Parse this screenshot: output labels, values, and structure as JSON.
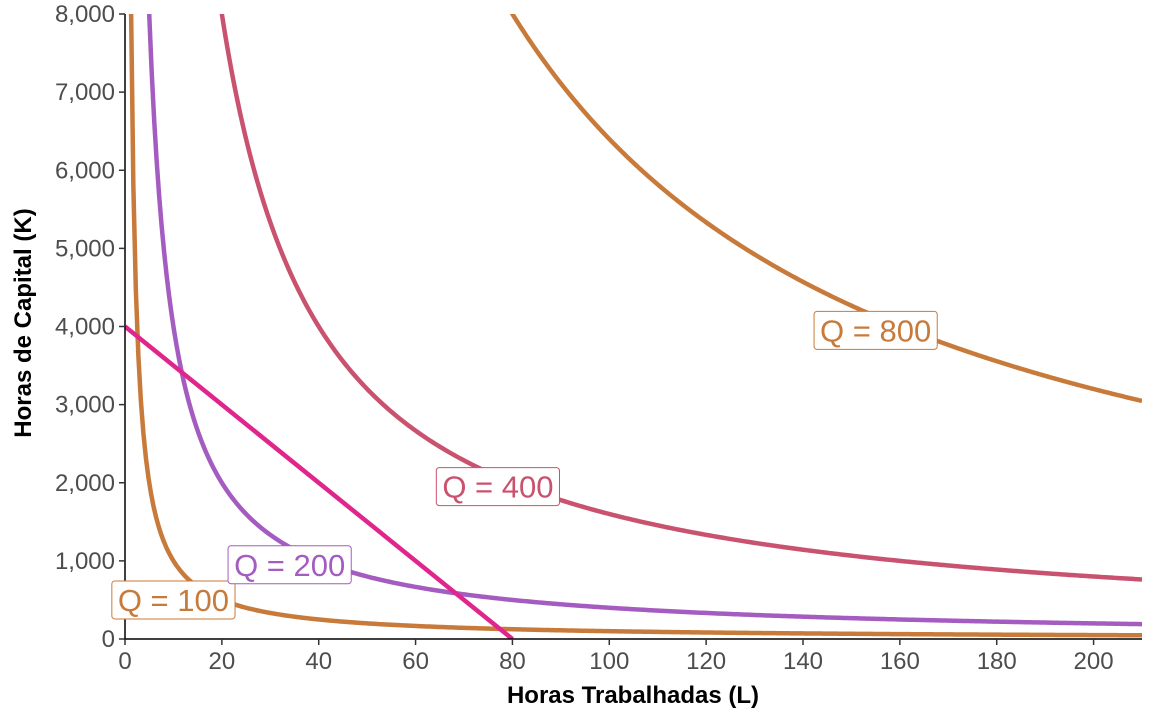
{
  "chart_data": {
    "type": "line",
    "xlabel": "Horas Trabalhadas (L)",
    "ylabel": "Horas de Capital (K)",
    "xlim": [
      0,
      210
    ],
    "ylim": [
      0,
      8000
    ],
    "x_ticks": [
      0,
      20,
      40,
      60,
      80,
      100,
      120,
      140,
      160,
      180,
      200
    ],
    "x_tick_labels": [
      "0",
      "20",
      "40",
      "60",
      "80",
      "100",
      "120",
      "140",
      "160",
      "180",
      "200"
    ],
    "y_ticks": [
      0,
      1000,
      2000,
      3000,
      4000,
      5000,
      6000,
      7000,
      8000
    ],
    "y_tick_labels": [
      "0",
      "1,000",
      "2,000",
      "3,000",
      "4,000",
      "5,000",
      "6,000",
      "7,000",
      "8,000"
    ],
    "grid": false,
    "isoquants": [
      {
        "label": "Q = 100",
        "color": "#C87A3A",
        "k_over_l": 10000,
        "l_min": 1.2,
        "label_at": [
          10,
          500
        ]
      },
      {
        "label": "Q = 200",
        "color": "#A55CC0",
        "k_over_l": 40000,
        "l_min": 5,
        "label_at": [
          34,
          950
        ]
      },
      {
        "label": "Q = 400",
        "color": "#C9526E",
        "k_over_l": 160000,
        "l_min": 19.5,
        "label_at": [
          77,
          1950
        ]
      },
      {
        "label": "Q = 800",
        "color": "#C87A3A",
        "k_over_l": 640000,
        "l_min": 79,
        "label_at": [
          155,
          3950
        ]
      }
    ],
    "isocost": {
      "color": "#E0268C",
      "x": [
        0,
        80
      ],
      "y": [
        4000,
        0
      ]
    }
  }
}
